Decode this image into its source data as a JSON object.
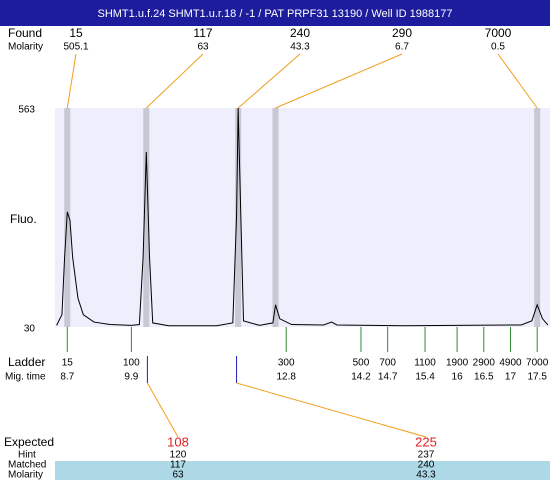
{
  "title": "SHMT1.u.f.24  SHMT1.u.r.18 / -1 / PAT PRPF31 13190 / Well ID 1988177",
  "found": {
    "label": "Found",
    "molarity_label": "Molarity",
    "peaks": [
      {
        "size": 15,
        "molarity": 505.1,
        "time": 8.7
      },
      {
        "size": 117,
        "molarity": 63,
        "time": 10.18
      },
      {
        "size": 240,
        "molarity": 43.3,
        "time": 11.9
      },
      {
        "size": 290,
        "molarity": 6.7,
        "time": 12.6
      },
      {
        "size": 7000,
        "molarity": 0.5,
        "time": 17.5
      }
    ]
  },
  "ladder": {
    "label": "Ladder",
    "time_label": "Mig. time",
    "sizes": [
      15,
      100,
      300,
      500,
      700,
      1100,
      1900,
      2900,
      4900,
      7000
    ],
    "times": [
      8.7,
      9.9,
      12.8,
      14.2,
      14.7,
      15.4,
      16,
      16.5,
      17,
      17.5
    ]
  },
  "expected": {
    "label": "Expected",
    "hint_label": "Hint",
    "matched_label": "Matched",
    "molarity_label": "Molarity",
    "columns": [
      {
        "expected": 108,
        "hint": 120,
        "matched": 117,
        "molarity": 63,
        "time": 10.2
      },
      {
        "expected": 225,
        "hint": 237,
        "matched": 240,
        "molarity": 43.3,
        "time": 11.87
      }
    ]
  },
  "chart_data": {
    "type": "line",
    "y_label": "Fluo.",
    "color": "#000000",
    "x": [
      8.5,
      8.6,
      8.65,
      8.7,
      8.75,
      8.8,
      8.9,
      9.0,
      9.2,
      9.5,
      9.9,
      10.05,
      10.12,
      10.18,
      10.24,
      10.3,
      10.6,
      11.5,
      11.8,
      11.87,
      11.9,
      11.95,
      12.0,
      12.3,
      12.55,
      12.6,
      12.68,
      12.9,
      13.5,
      13.65,
      13.75,
      15,
      17.2,
      17.4,
      17.5,
      17.6,
      17.7
    ],
    "values": [
      34,
      60,
      200,
      310,
      290,
      200,
      100,
      60,
      42,
      36,
      34,
      36,
      200,
      456,
      200,
      40,
      33,
      33,
      40,
      300,
      563,
      300,
      45,
      34,
      40,
      84,
      50,
      36,
      35,
      42,
      35,
      33,
      35,
      45,
      84,
      50,
      35
    ],
    "xlim": [
      8.47,
      17.74
    ],
    "ylim": [
      30,
      563
    ],
    "yticks": [
      30,
      563
    ]
  }
}
